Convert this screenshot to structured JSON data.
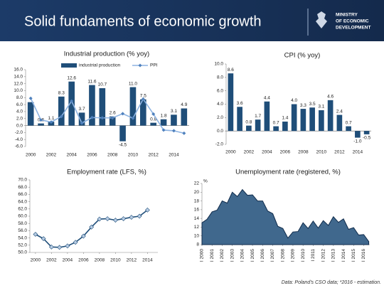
{
  "header": {
    "title": "Solid fundaments of economic growth",
    "logo": [
      "MINISTRY",
      "OF ECONOMIC",
      "DEVELOPMENT"
    ]
  },
  "footer": "Data: Poland's CSO data; *2016 - estimation.",
  "chart_data": [
    {
      "type": "bar",
      "title": "Industrial production (% yoy)",
      "categories": [
        "2000",
        null,
        "2002",
        null,
        "2004",
        null,
        "2006",
        null,
        "2008",
        null,
        "2010",
        null,
        "2012",
        null,
        "2014",
        null
      ],
      "series": [
        {
          "name": "industrial production",
          "kind": "bar",
          "color": "#1f4e79",
          "values": [
            6.7,
            0.6,
            1.1,
            8.3,
            12.6,
            3.7,
            11.6,
            10.7,
            2.6,
            -4.5,
            11.0,
            7.5,
            0.8,
            1.8,
            3.1,
            4.9
          ],
          "value_labels": [
            null,
            "0.6",
            "1.1",
            "8.3",
            "12.6",
            "3.7",
            "11.6",
            "10.7",
            "2.6",
            "-4.5",
            "11.0",
            "7.5",
            "0.8",
            "1.8",
            "3.1",
            "4.9"
          ]
        },
        {
          "name": "PPI",
          "kind": "line",
          "color": "#8db3e2",
          "values": [
            7.8,
            1.6,
            1.0,
            2.6,
            7.0,
            0.7,
            2.3,
            2.2,
            2.2,
            3.4,
            2.1,
            7.6,
            3.3,
            -1.3,
            -1.5,
            -2.2
          ]
        }
      ],
      "ylim": [
        -6,
        16
      ],
      "yticks": [
        {
          "value": -6,
          "label": "-6.0"
        },
        {
          "value": -4,
          "label": "-4.0"
        },
        {
          "value": -2,
          "label": "-2.0"
        },
        {
          "value": 0,
          "label": "0.0"
        },
        {
          "value": 2,
          "label": "2.0"
        },
        {
          "value": 4,
          "label": "4.0"
        },
        {
          "value": 6,
          "label": "6.0"
        },
        {
          "value": 8,
          "label": "8.0"
        },
        {
          "value": 10,
          "label": "10.0"
        },
        {
          "value": 12,
          "label": "12.0"
        },
        {
          "value": 14,
          "label": "14.0"
        },
        {
          "value": 16,
          "label": "16.0"
        }
      ],
      "grid": false
    },
    {
      "type": "bar",
      "title": "CPI (% yoy)",
      "color": "#1f4e79",
      "categories": [
        "2000",
        null,
        "2002",
        null,
        "2004",
        null,
        "2006",
        null,
        "2008",
        null,
        "2010",
        null,
        "2012",
        null,
        "2014",
        null
      ],
      "values": [
        8.6,
        3.6,
        0.8,
        1.7,
        4.4,
        0.7,
        1.4,
        4.0,
        3.3,
        3.5,
        3.1,
        4.6,
        2.4,
        0.7,
        -1.0,
        -0.5
      ],
      "value_labels": [
        "8.6",
        "3.6",
        "0.8",
        "1.7",
        "4.4",
        "0.7",
        "1.4",
        "4.0",
        "3.3",
        "3.5",
        "3.1",
        "4.6",
        "2.4",
        "0.7",
        "-1.0",
        "-0.5"
      ],
      "ylim": [
        -2,
        10
      ],
      "yticks": [
        {
          "value": -2,
          "label": "-2.0"
        },
        {
          "value": 0,
          "label": "0.0"
        },
        {
          "value": 2,
          "label": "2.0"
        },
        {
          "value": 4,
          "label": "4.0"
        },
        {
          "value": 6,
          "label": "6.0"
        },
        {
          "value": 8,
          "label": "8.0"
        },
        {
          "value": 10,
          "label": "10.0"
        }
      ],
      "grid": false
    },
    {
      "type": "line",
      "title": "Employment rate (LFS, %)",
      "color": "#1f4e79",
      "marker_color": "#b8cce4",
      "x": [
        2000,
        2001,
        2002,
        2003,
        2004,
        2005,
        2006,
        2007,
        2008,
        2009,
        2010,
        2011,
        2012,
        2013,
        2014
      ],
      "values": [
        55.0,
        53.8,
        51.5,
        51.4,
        51.8,
        52.8,
        54.5,
        57.0,
        59.2,
        59.3,
        58.9,
        59.3,
        59.7,
        60.0,
        61.7
      ],
      "xlim": [
        1999.3,
        2015.3
      ],
      "xticks": [
        2000,
        2002,
        2004,
        2006,
        2008,
        2010,
        2012,
        2014
      ],
      "ylim": [
        50,
        70
      ],
      "yticks": [
        {
          "value": 50,
          "label": "50.0"
        },
        {
          "value": 52,
          "label": "52.0"
        },
        {
          "value": 54,
          "label": "54.0"
        },
        {
          "value": 56,
          "label": "56.0"
        },
        {
          "value": 58,
          "label": "58.0"
        },
        {
          "value": 60,
          "label": "60.0"
        },
        {
          "value": 62,
          "label": "62.0"
        },
        {
          "value": 64,
          "label": "64.0"
        },
        {
          "value": 66,
          "label": "66.0"
        },
        {
          "value": 68,
          "label": "68.0"
        },
        {
          "value": 70,
          "label": "70.0"
        }
      ],
      "grid": false
    },
    {
      "type": "area",
      "title": "Unemployment rate (registered, %)",
      "y_unit": "%",
      "color": "#1f4e79",
      "x": [
        2000,
        2000.5,
        2001,
        2001.5,
        2002,
        2002.5,
        2003,
        2003.5,
        2004,
        2004.5,
        2005,
        2005.5,
        2006,
        2006.5,
        2007,
        2007.5,
        2008,
        2008.5,
        2009,
        2009.5,
        2010,
        2010.5,
        2011,
        2011.5,
        2012,
        2012.5,
        2013,
        2013.5,
        2014,
        2014.5,
        2015,
        2015.5,
        2016,
        2016.5
      ],
      "values": [
        13.0,
        13.8,
        15.5,
        15.9,
        18.0,
        17.5,
        20.0,
        19.0,
        20.6,
        19.3,
        19.4,
        18.0,
        18.0,
        15.7,
        15.1,
        12.2,
        11.7,
        9.5,
        10.9,
        11.0,
        13.0,
        11.7,
        13.4,
        11.8,
        13.5,
        12.4,
        14.4,
        13.1,
        13.9,
        11.5,
        11.9,
        10.2,
        10.3,
        8.7
      ],
      "xlim": [
        2000,
        2016.6
      ],
      "xticks": [
        {
          "value": 2000,
          "label": "I 2000"
        },
        {
          "value": 2001,
          "label": "I 2001"
        },
        {
          "value": 2002,
          "label": "I 2002"
        },
        {
          "value": 2003,
          "label": "I 2003"
        },
        {
          "value": 2004,
          "label": "I 2004"
        },
        {
          "value": 2005,
          "label": "I 2005"
        },
        {
          "value": 2006,
          "label": "I 2006"
        },
        {
          "value": 2007,
          "label": "I 2007"
        },
        {
          "value": 2008,
          "label": "I 2008"
        },
        {
          "value": 2009,
          "label": "I 2009"
        },
        {
          "value": 2010,
          "label": "I 2010"
        },
        {
          "value": 2011,
          "label": "I 2011"
        },
        {
          "value": 2012,
          "label": "I 2012"
        },
        {
          "value": 2013,
          "label": "I 2013"
        },
        {
          "value": 2014,
          "label": "I 2014"
        },
        {
          "value": 2015,
          "label": "I 2015"
        },
        {
          "value": 2016,
          "label": "I 2016"
        }
      ],
      "ylim": [
        8,
        22
      ],
      "yticks": [
        8,
        10,
        12,
        14,
        16,
        18,
        20,
        22
      ],
      "grid": false
    }
  ]
}
